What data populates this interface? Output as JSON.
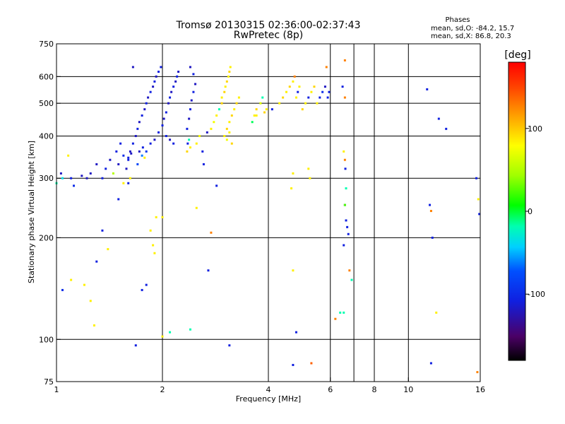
{
  "chart_data": {
    "type": "scatter",
    "title": "Tromsø 20130315 02:36:00-02:37:43",
    "subtitle": "RwPretec (8p)",
    "stats": {
      "header": "Phases",
      "line_o": "mean, sd,O: -84.2, 15.7",
      "line_x": "mean, sd,X: 86.8, 20.3"
    },
    "xlabel": "Frequency [MHz]",
    "ylabel": "Stationary phase Virtual Height [km]",
    "xscale": "log",
    "yscale": "log",
    "xlim": [
      1,
      16
    ],
    "ylim": [
      75,
      750
    ],
    "x_ticks": [
      1,
      2,
      4,
      6,
      8,
      10,
      16
    ],
    "x_tick_labels": [
      "1",
      "2",
      "4",
      "6",
      "8",
      "10",
      "16"
    ],
    "x_gridlines": [
      2,
      4,
      6,
      7,
      8,
      10
    ],
    "y_ticks": [
      75,
      100,
      200,
      300,
      400,
      500,
      600,
      750
    ],
    "y_tick_labels": [
      "75",
      "100",
      "200",
      "300",
      "400",
      "500",
      "600",
      "750"
    ],
    "y_gridlines": [
      100,
      200,
      300,
      400,
      500,
      600
    ],
    "grid": true,
    "colorbar": {
      "label": "[deg]",
      "range": [
        -180,
        180
      ],
      "ticks": [
        100,
        0,
        -100
      ],
      "tick_labels": [
        "100",
        "0",
        "-100"
      ]
    },
    "points": [
      [
        1.0,
        290,
        -10
      ],
      [
        1.04,
        300,
        -30
      ],
      [
        1.03,
        310,
        -120
      ],
      [
        1.08,
        350,
        100
      ],
      [
        1.1,
        300,
        -110
      ],
      [
        1.12,
        285,
        -100
      ],
      [
        1.18,
        305,
        -120
      ],
      [
        1.22,
        300,
        -120
      ],
      [
        1.25,
        310,
        -120
      ],
      [
        1.3,
        330,
        -120
      ],
      [
        1.35,
        300,
        -110
      ],
      [
        1.38,
        320,
        -110
      ],
      [
        1.42,
        340,
        -120
      ],
      [
        1.45,
        310,
        60
      ],
      [
        1.48,
        360,
        -110
      ],
      [
        1.5,
        330,
        -120
      ],
      [
        1.52,
        380,
        -110
      ],
      [
        1.55,
        350,
        -100
      ],
      [
        1.58,
        320,
        -120
      ],
      [
        1.6,
        340,
        -110
      ],
      [
        1.62,
        360,
        -120
      ],
      [
        1.65,
        380,
        -110
      ],
      [
        1.68,
        400,
        -120
      ],
      [
        1.7,
        420,
        -110
      ],
      [
        1.72,
        440,
        -120
      ],
      [
        1.75,
        460,
        -110
      ],
      [
        1.78,
        480,
        -120
      ],
      [
        1.8,
        500,
        -110
      ],
      [
        1.82,
        520,
        -120
      ],
      [
        1.85,
        540,
        -110
      ],
      [
        1.88,
        560,
        -120
      ],
      [
        1.9,
        580,
        -110
      ],
      [
        1.92,
        600,
        -120
      ],
      [
        1.95,
        620,
        -110
      ],
      [
        1.98,
        640,
        -110
      ],
      [
        1.65,
        640,
        -120
      ],
      [
        1.7,
        330,
        -80
      ],
      [
        1.75,
        350,
        -60
      ],
      [
        1.78,
        345,
        100
      ],
      [
        1.8,
        360,
        -90
      ],
      [
        1.85,
        380,
        -110
      ],
      [
        1.9,
        390,
        -120
      ],
      [
        1.95,
        410,
        -110
      ],
      [
        2.0,
        430,
        -110
      ],
      [
        2.02,
        450,
        -120
      ],
      [
        2.05,
        470,
        -110
      ],
      [
        2.08,
        500,
        -120
      ],
      [
        2.1,
        520,
        -110
      ],
      [
        2.12,
        540,
        -120
      ],
      [
        2.15,
        560,
        -110
      ],
      [
        2.18,
        580,
        -120
      ],
      [
        2.2,
        600,
        -110
      ],
      [
        2.22,
        620,
        -120
      ],
      [
        2.05,
        400,
        -110
      ],
      [
        2.1,
        390,
        -120
      ],
      [
        2.15,
        380,
        -110
      ],
      [
        1.72,
        360,
        -120
      ],
      [
        1.76,
        370,
        -110
      ],
      [
        1.6,
        345,
        -110
      ],
      [
        1.63,
        355,
        -120
      ],
      [
        2.35,
        420,
        -110
      ],
      [
        2.38,
        450,
        -120
      ],
      [
        2.4,
        480,
        -110
      ],
      [
        2.42,
        510,
        -120
      ],
      [
        2.45,
        540,
        -110
      ],
      [
        2.48,
        570,
        -120
      ],
      [
        2.45,
        610,
        -110
      ],
      [
        2.4,
        640,
        -120
      ],
      [
        2.36,
        380,
        -110
      ],
      [
        2.38,
        390,
        -10
      ],
      [
        2.4,
        370,
        100
      ],
      [
        2.35,
        360,
        110
      ],
      [
        2.5,
        380,
        100
      ],
      [
        2.55,
        400,
        90
      ],
      [
        2.6,
        360,
        -110
      ],
      [
        2.62,
        330,
        -110
      ],
      [
        2.68,
        410,
        -120
      ],
      [
        2.75,
        420,
        100
      ],
      [
        2.8,
        440,
        90
      ],
      [
        2.85,
        460,
        100
      ],
      [
        2.9,
        480,
        -10
      ],
      [
        2.95,
        500,
        110
      ],
      [
        2.95,
        520,
        100
      ],
      [
        3.0,
        540,
        110
      ],
      [
        3.02,
        560,
        100
      ],
      [
        3.05,
        580,
        110
      ],
      [
        3.08,
        600,
        100
      ],
      [
        3.1,
        620,
        110
      ],
      [
        3.12,
        640,
        100
      ],
      [
        3.0,
        400,
        100
      ],
      [
        3.05,
        420,
        110
      ],
      [
        3.1,
        440,
        100
      ],
      [
        3.15,
        460,
        110
      ],
      [
        3.2,
        480,
        100
      ],
      [
        3.25,
        500,
        110
      ],
      [
        3.3,
        520,
        100
      ],
      [
        3.05,
        390,
        90
      ],
      [
        3.1,
        410,
        100
      ],
      [
        3.15,
        380,
        110
      ],
      [
        3.6,
        440,
        0
      ],
      [
        3.65,
        460,
        100
      ],
      [
        3.7,
        480,
        110
      ],
      [
        3.7,
        460,
        100
      ],
      [
        3.8,
        500,
        80
      ],
      [
        3.85,
        520,
        -10
      ],
      [
        3.9,
        470,
        110
      ],
      [
        3.95,
        480,
        100
      ],
      [
        4.1,
        480,
        -110
      ],
      [
        4.3,
        500,
        100
      ],
      [
        4.4,
        520,
        110
      ],
      [
        4.5,
        540,
        100
      ],
      [
        4.6,
        560,
        110
      ],
      [
        4.7,
        580,
        100
      ],
      [
        4.75,
        600,
        140
      ],
      [
        4.8,
        520,
        100
      ],
      [
        4.85,
        540,
        -110
      ],
      [
        4.9,
        560,
        100
      ],
      [
        5.0,
        480,
        110
      ],
      [
        5.1,
        500,
        100
      ],
      [
        5.2,
        520,
        -110
      ],
      [
        5.3,
        540,
        100
      ],
      [
        5.4,
        560,
        110
      ],
      [
        5.5,
        500,
        100
      ],
      [
        5.6,
        520,
        -110
      ],
      [
        5.7,
        540,
        -100
      ],
      [
        5.8,
        560,
        -120
      ],
      [
        5.9,
        520,
        -110
      ],
      [
        5.95,
        540,
        -110
      ],
      [
        5.85,
        640,
        140
      ],
      [
        6.5,
        560,
        -110
      ],
      [
        6.6,
        520,
        140
      ],
      [
        6.55,
        360,
        100
      ],
      [
        6.6,
        340,
        140
      ],
      [
        6.62,
        320,
        -110
      ],
      [
        6.65,
        280,
        -10
      ],
      [
        6.6,
        250,
        -110
      ],
      [
        6.65,
        225,
        -110
      ],
      [
        6.7,
        215,
        -110
      ],
      [
        6.75,
        205,
        -110
      ],
      [
        6.55,
        190,
        -110
      ],
      [
        6.8,
        160,
        140
      ],
      [
        6.9,
        150,
        -10
      ],
      [
        6.55,
        120,
        -10
      ],
      [
        6.6,
        670,
        140
      ],
      [
        4.7,
        310,
        100
      ],
      [
        4.65,
        280,
        100
      ],
      [
        4.7,
        160,
        100
      ],
      [
        5.2,
        320,
        100
      ],
      [
        5.25,
        300,
        100
      ],
      [
        6.6,
        250,
        30
      ],
      [
        6.2,
        115,
        140
      ],
      [
        6.4,
        120,
        -10
      ],
      [
        4.8,
        105,
        -110
      ],
      [
        4.7,
        84,
        -110
      ],
      [
        5.3,
        85,
        150
      ],
      [
        11.3,
        550,
        -110
      ],
      [
        11.5,
        250,
        -110
      ],
      [
        11.6,
        240,
        140
      ],
      [
        11.7,
        200,
        -110
      ],
      [
        12.0,
        120,
        100
      ],
      [
        12.2,
        450,
        -110
      ],
      [
        12.8,
        420,
        -110
      ],
      [
        11.6,
        85,
        -110
      ],
      [
        15.6,
        300,
        -110
      ],
      [
        15.8,
        260,
        100
      ],
      [
        15.9,
        235,
        -110
      ],
      [
        15.7,
        80,
        140
      ],
      [
        1.04,
        140,
        -100
      ],
      [
        1.1,
        150,
        100
      ],
      [
        1.2,
        145,
        100
      ],
      [
        1.25,
        130,
        100
      ],
      [
        1.28,
        110,
        100
      ],
      [
        1.3,
        170,
        -110
      ],
      [
        1.4,
        185,
        100
      ],
      [
        1.35,
        210,
        -110
      ],
      [
        1.5,
        260,
        -110
      ],
      [
        1.6,
        290,
        -110
      ],
      [
        1.55,
        290,
        100
      ],
      [
        1.62,
        300,
        100
      ],
      [
        1.68,
        96,
        -110
      ],
      [
        1.75,
        140,
        -110
      ],
      [
        1.8,
        145,
        -110
      ],
      [
        1.85,
        210,
        100
      ],
      [
        1.88,
        190,
        100
      ],
      [
        1.9,
        180,
        100
      ],
      [
        1.92,
        230,
        100
      ],
      [
        2.0,
        230,
        100
      ],
      [
        2.0,
        102,
        100
      ],
      [
        2.1,
        105,
        -10
      ],
      [
        2.4,
        107,
        -10
      ],
      [
        2.5,
        245,
        100
      ],
      [
        2.7,
        160,
        -110
      ],
      [
        2.75,
        207,
        140
      ],
      [
        2.85,
        285,
        -110
      ],
      [
        3.1,
        96,
        -110
      ]
    ]
  }
}
